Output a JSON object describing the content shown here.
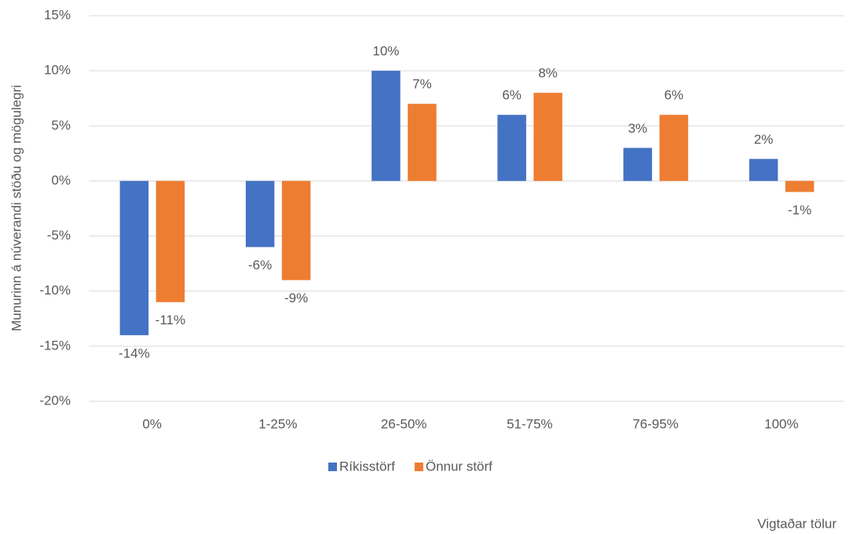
{
  "chart_data": {
    "type": "bar",
    "y_label": "Munurinn á núverandi stöðu og mögulegri",
    "annotation": "Vigtaðar tölur",
    "categories": [
      "0%",
      "1-25%",
      "26-50%",
      "51-75%",
      "76-95%",
      "100%"
    ],
    "series": [
      {
        "name": "Ríkisstörf",
        "color": "#4472c4",
        "values": [
          -14,
          -6,
          10,
          6,
          3,
          2
        ],
        "value_labels": [
          "-14%",
          "-6%",
          "10%",
          "6%",
          "3%",
          "2%"
        ]
      },
      {
        "name": "Önnur störf",
        "color": "#ed7d31",
        "values": [
          -11,
          -9,
          7,
          8,
          6,
          -1
        ],
        "value_labels": [
          "-11%",
          "-9%",
          "7%",
          "8%",
          "6%",
          "-1%"
        ]
      }
    ],
    "ylim": [
      -20,
      15
    ],
    "yticks": [
      {
        "value": -20,
        "label": "-20%"
      },
      {
        "value": -15,
        "label": "-15%"
      },
      {
        "value": -10,
        "label": "-10%"
      },
      {
        "value": -5,
        "label": "-5%"
      },
      {
        "value": 0,
        "label": "0%"
      },
      {
        "value": 5,
        "label": "5%"
      },
      {
        "value": 10,
        "label": "10%"
      },
      {
        "value": 15,
        "label": "15%"
      }
    ],
    "grid": true,
    "legend": "bottom"
  }
}
